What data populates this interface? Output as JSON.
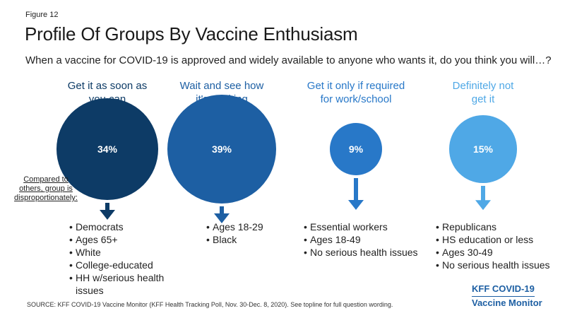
{
  "figure_label": "Figure 12",
  "title": "Profile Of Groups By Vaccine Enthusiasm",
  "subtitle": "When a vaccine for COVID-19 is approved and widely available to anyone who wants it, do you think you will…?",
  "compared_note": "Compared to others, group is disproportionately:",
  "source": "SOURCE: KFF COVID-19 Vaccine Monitor (KFF Health Tracking Poll, Nov. 30-Dec. 8, 2020). See topline for full question wording.",
  "brand": {
    "line1": "KFF COVID-19",
    "line2": "Vaccine Monitor"
  },
  "chart_data": {
    "type": "bubble",
    "unit": "%",
    "categories": [
      "Get it as soon as you can",
      "Wait and see how it's working",
      "Get it only if required for work/school",
      "Definitely not get it"
    ],
    "values": [
      34,
      39,
      9,
      15
    ],
    "value_labels": [
      "34%",
      "39%",
      "9%",
      "15%"
    ],
    "colors": [
      "#0d3b66",
      "#1d5fa3",
      "#2878c8",
      "#4fa8e6"
    ],
    "groups": [
      {
        "heading_lines": [
          "Get it as soon as",
          "you can"
        ],
        "label": "34%",
        "bullets": [
          "Democrats",
          "Ages 65+",
          "White",
          "College-educated",
          "HH w/serious health issues"
        ]
      },
      {
        "heading_lines": [
          "Wait and see how",
          "it's working"
        ],
        "label": "39%",
        "bullets": [
          "Ages 18-29",
          "Black"
        ]
      },
      {
        "heading_lines": [
          "Get it only if required",
          "for work/school"
        ],
        "label": "9%",
        "bullets": [
          "Essential workers",
          "Ages 18-49",
          "No serious health issues"
        ]
      },
      {
        "heading_lines": [
          "Definitely not",
          "get it"
        ],
        "label": "15%",
        "bullets": [
          "Republicans",
          "HS education or less",
          "Ages 30-49",
          "No serious health issues"
        ]
      }
    ]
  }
}
